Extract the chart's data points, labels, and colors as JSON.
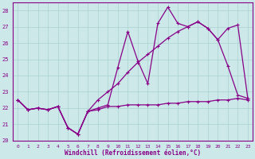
{
  "x": [
    0,
    1,
    2,
    3,
    4,
    5,
    6,
    7,
    8,
    9,
    10,
    11,
    12,
    13,
    14,
    15,
    16,
    17,
    18,
    19,
    20,
    21,
    22,
    23
  ],
  "line_flat": [
    22.5,
    21.9,
    22.0,
    21.9,
    22.1,
    20.8,
    20.4,
    21.8,
    21.9,
    22.1,
    22.1,
    22.2,
    22.2,
    22.2,
    22.2,
    22.3,
    22.3,
    22.4,
    22.4,
    22.4,
    22.5,
    22.5,
    22.6,
    22.5
  ],
  "line_peak": [
    22.5,
    21.9,
    22.0,
    21.9,
    22.1,
    20.8,
    20.4,
    21.8,
    22.0,
    22.2,
    24.5,
    26.7,
    24.9,
    23.5,
    27.2,
    28.2,
    27.2,
    27.0,
    27.3,
    26.9,
    26.2,
    24.6,
    22.8,
    22.6
  ],
  "line_diag": [
    22.5,
    21.9,
    22.0,
    21.9,
    22.1,
    20.8,
    20.4,
    21.8,
    22.5,
    23.0,
    23.5,
    24.2,
    24.8,
    25.3,
    25.8,
    26.3,
    26.7,
    27.0,
    27.3,
    26.9,
    26.2,
    26.9,
    27.1,
    22.6
  ],
  "line_color": "#880088",
  "bg_color": "#cce8e8",
  "grid_color": "#aad0d0",
  "xlabel": "Windchill (Refroidissement éolien,°C)",
  "ylim": [
    20,
    28.5
  ],
  "xlim": [
    -0.5,
    23.5
  ],
  "yticks": [
    20,
    21,
    22,
    23,
    24,
    25,
    26,
    27,
    28
  ],
  "xticks": [
    0,
    1,
    2,
    3,
    4,
    5,
    6,
    7,
    8,
    9,
    10,
    11,
    12,
    13,
    14,
    15,
    16,
    17,
    18,
    19,
    20,
    21,
    22,
    23
  ]
}
